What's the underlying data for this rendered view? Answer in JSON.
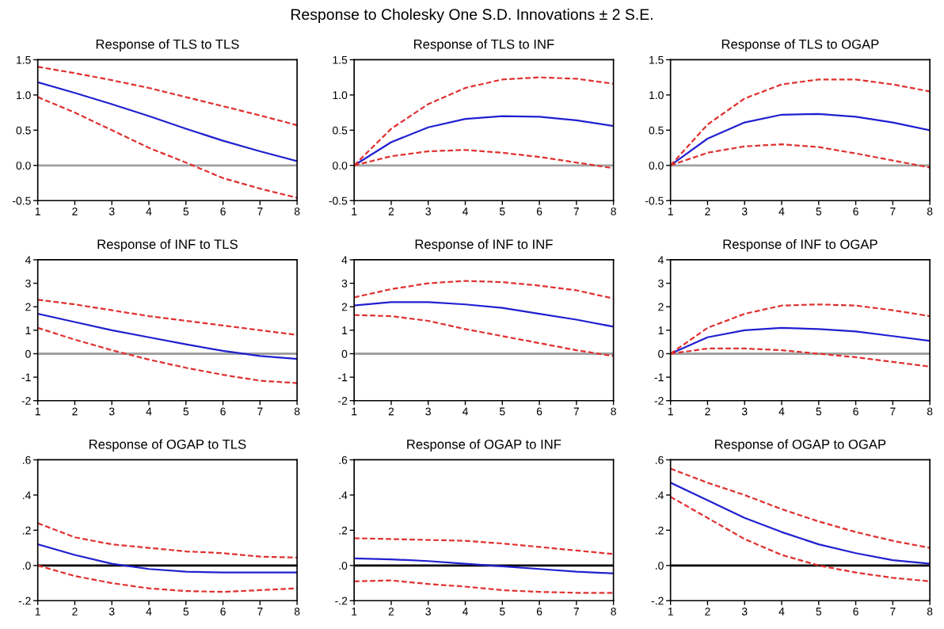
{
  "chart_data": [
    {
      "type": "line",
      "title": "Response of TLS to TLS",
      "annotations": [
        "Response to Cholesky One S.D. Innovations ± 2 S.E."
      ],
      "x": [
        1,
        2,
        3,
        4,
        5,
        6,
        7,
        8
      ],
      "xlim": [
        1,
        8
      ],
      "xticks": [
        1,
        2,
        3,
        4,
        5,
        6,
        7,
        8
      ],
      "ylim": [
        -0.5,
        1.5
      ],
      "yticks": [
        {
          "value": -0.5,
          "label": "-0.5"
        },
        {
          "value": 0,
          "label": "0.0"
        },
        {
          "value": 0.5,
          "label": "0.5"
        },
        {
          "value": 1,
          "label": "1.0"
        },
        {
          "value": 1.5,
          "label": "1.5"
        }
      ],
      "ref_lines": [
        {
          "axis": "y",
          "value": 0,
          "color": "#a0a0a0"
        }
      ],
      "series": [
        {
          "color": "#2020d0",
          "line_style": "solid",
          "values": [
            1.18,
            1.03,
            0.87,
            0.7,
            0.52,
            0.35,
            0.2,
            0.06
          ]
        },
        {
          "color": "#e03030",
          "line_style": "dashed",
          "values": [
            1.4,
            1.31,
            1.21,
            1.1,
            0.97,
            0.84,
            0.71,
            0.57
          ]
        },
        {
          "color": "#e03030",
          "line_style": "dashed",
          "values": [
            0.97,
            0.75,
            0.5,
            0.25,
            0.04,
            -0.18,
            -0.33,
            -0.46
          ]
        }
      ]
    },
    {
      "type": "line",
      "title": "Response of TLS to INF",
      "x": [
        1,
        2,
        3,
        4,
        5,
        6,
        7,
        8
      ],
      "xlim": [
        1,
        8
      ],
      "xticks": [
        1,
        2,
        3,
        4,
        5,
        6,
        7,
        8
      ],
      "ylim": [
        -0.5,
        1.5
      ],
      "yticks": [
        {
          "value": -0.5,
          "label": "-0.5"
        },
        {
          "value": 0,
          "label": "0.0"
        },
        {
          "value": 0.5,
          "label": "0.5"
        },
        {
          "value": 1,
          "label": "1.0"
        },
        {
          "value": 1.5,
          "label": "1.5"
        }
      ],
      "ref_lines": [
        {
          "axis": "y",
          "value": 0,
          "color": "#a0a0a0"
        }
      ],
      "series": [
        {
          "color": "#2020d0",
          "line_style": "solid",
          "values": [
            0,
            0.33,
            0.54,
            0.66,
            0.7,
            0.69,
            0.64,
            0.56
          ]
        },
        {
          "color": "#e03030",
          "line_style": "dashed",
          "values": [
            0,
            0.52,
            0.87,
            1.1,
            1.22,
            1.25,
            1.23,
            1.16
          ]
        },
        {
          "color": "#e03030",
          "line_style": "dashed",
          "values": [
            0,
            0.13,
            0.2,
            0.22,
            0.18,
            0.12,
            0.04,
            -0.04
          ]
        }
      ]
    },
    {
      "type": "line",
      "title": "Response of TLS to OGAP",
      "x": [
        1,
        2,
        3,
        4,
        5,
        6,
        7,
        8
      ],
      "xlim": [
        1,
        8
      ],
      "xticks": [
        1,
        2,
        3,
        4,
        5,
        6,
        7,
        8
      ],
      "ylim": [
        -0.5,
        1.5
      ],
      "yticks": [
        {
          "value": -0.5,
          "label": "-0.5"
        },
        {
          "value": 0,
          "label": "0.0"
        },
        {
          "value": 0.5,
          "label": "0.5"
        },
        {
          "value": 1,
          "label": "1.0"
        },
        {
          "value": 1.5,
          "label": "1.5"
        }
      ],
      "ref_lines": [
        {
          "axis": "y",
          "value": 0,
          "color": "#a0a0a0"
        }
      ],
      "series": [
        {
          "color": "#2020d0",
          "line_style": "solid",
          "values": [
            0,
            0.38,
            0.61,
            0.72,
            0.73,
            0.69,
            0.61,
            0.5
          ]
        },
        {
          "color": "#e03030",
          "line_style": "dashed",
          "values": [
            0,
            0.58,
            0.95,
            1.15,
            1.22,
            1.22,
            1.15,
            1.05
          ]
        },
        {
          "color": "#e03030",
          "line_style": "dashed",
          "values": [
            0,
            0.18,
            0.27,
            0.3,
            0.26,
            0.17,
            0.07,
            -0.03
          ]
        }
      ]
    },
    {
      "type": "line",
      "title": "Response of INF to TLS",
      "x": [
        1,
        2,
        3,
        4,
        5,
        6,
        7,
        8
      ],
      "xlim": [
        1,
        8
      ],
      "xticks": [
        1,
        2,
        3,
        4,
        5,
        6,
        7,
        8
      ],
      "ylim": [
        -2,
        4
      ],
      "yticks": [
        -2,
        -1,
        0,
        1,
        2,
        3,
        4
      ],
      "ref_lines": [
        {
          "axis": "y",
          "value": 0,
          "color": "#a0a0a0"
        }
      ],
      "series": [
        {
          "color": "#2020d0",
          "line_style": "solid",
          "values": [
            1.7,
            1.35,
            1.0,
            0.7,
            0.4,
            0.12,
            -0.1,
            -0.22
          ]
        },
        {
          "color": "#e03030",
          "line_style": "dashed",
          "values": [
            2.3,
            2.1,
            1.85,
            1.6,
            1.4,
            1.2,
            1.0,
            0.8
          ]
        },
        {
          "color": "#e03030",
          "line_style": "dashed",
          "values": [
            1.1,
            0.6,
            0.15,
            -0.25,
            -0.6,
            -0.9,
            -1.15,
            -1.25
          ]
        }
      ]
    },
    {
      "type": "line",
      "title": "Response of INF to INF",
      "x": [
        1,
        2,
        3,
        4,
        5,
        6,
        7,
        8
      ],
      "xlim": [
        1,
        8
      ],
      "xticks": [
        1,
        2,
        3,
        4,
        5,
        6,
        7,
        8
      ],
      "ylim": [
        -2,
        4
      ],
      "yticks": [
        -2,
        -1,
        0,
        1,
        2,
        3,
        4
      ],
      "ref_lines": [
        {
          "axis": "y",
          "value": 0,
          "color": "#a0a0a0"
        }
      ],
      "series": [
        {
          "color": "#2020d0",
          "line_style": "solid",
          "values": [
            2.05,
            2.2,
            2.2,
            2.1,
            1.95,
            1.7,
            1.45,
            1.15
          ]
        },
        {
          "color": "#e03030",
          "line_style": "dashed",
          "values": [
            2.4,
            2.75,
            3.0,
            3.1,
            3.05,
            2.9,
            2.7,
            2.35
          ]
        },
        {
          "color": "#e03030",
          "line_style": "dashed",
          "values": [
            1.65,
            1.6,
            1.4,
            1.05,
            0.75,
            0.45,
            0.15,
            -0.1
          ]
        }
      ]
    },
    {
      "type": "line",
      "title": "Response of INF to OGAP",
      "x": [
        1,
        2,
        3,
        4,
        5,
        6,
        7,
        8
      ],
      "xlim": [
        1,
        8
      ],
      "xticks": [
        1,
        2,
        3,
        4,
        5,
        6,
        7,
        8
      ],
      "ylim": [
        -2,
        4
      ],
      "yticks": [
        -2,
        -1,
        0,
        1,
        2,
        3,
        4
      ],
      "ref_lines": [
        {
          "axis": "y",
          "value": 0,
          "color": "#a0a0a0"
        }
      ],
      "series": [
        {
          "color": "#2020d0",
          "line_style": "solid",
          "values": [
            0,
            0.7,
            1.0,
            1.1,
            1.05,
            0.95,
            0.75,
            0.55
          ]
        },
        {
          "color": "#e03030",
          "line_style": "dashed",
          "values": [
            0,
            1.1,
            1.7,
            2.05,
            2.1,
            2.05,
            1.85,
            1.6
          ]
        },
        {
          "color": "#e03030",
          "line_style": "dashed",
          "values": [
            0,
            0.22,
            0.22,
            0.15,
            0.0,
            -0.15,
            -0.35,
            -0.55
          ]
        }
      ]
    },
    {
      "type": "line",
      "title": "Response of OGAP to TLS",
      "x": [
        1,
        2,
        3,
        4,
        5,
        6,
        7,
        8
      ],
      "xlim": [
        1,
        8
      ],
      "xticks": [
        1,
        2,
        3,
        4,
        5,
        6,
        7,
        8
      ],
      "ylim": [
        -0.2,
        0.6
      ],
      "yticks": [
        {
          "value": -0.2,
          "label": "-.2"
        },
        {
          "value": 0,
          "label": ".0"
        },
        {
          "value": 0.2,
          "label": ".2"
        },
        {
          "value": 0.4,
          "label": ".4"
        },
        {
          "value": 0.6,
          "label": ".6"
        }
      ],
      "ref_lines": [
        {
          "axis": "y",
          "value": 0,
          "color": "#000000"
        }
      ],
      "series": [
        {
          "color": "#2020d0",
          "line_style": "solid",
          "values": [
            0.12,
            0.06,
            0.01,
            -0.02,
            -0.035,
            -0.04,
            -0.04,
            -0.04
          ]
        },
        {
          "color": "#e03030",
          "line_style": "dashed",
          "values": [
            0.24,
            0.16,
            0.12,
            0.1,
            0.08,
            0.07,
            0.05,
            0.045
          ]
        },
        {
          "color": "#e03030",
          "line_style": "dashed",
          "values": [
            0.0,
            -0.06,
            -0.1,
            -0.13,
            -0.145,
            -0.15,
            -0.14,
            -0.13
          ]
        }
      ]
    },
    {
      "type": "line",
      "title": "Response of OGAP to INF",
      "x": [
        1,
        2,
        3,
        4,
        5,
        6,
        7,
        8
      ],
      "xlim": [
        1,
        8
      ],
      "xticks": [
        1,
        2,
        3,
        4,
        5,
        6,
        7,
        8
      ],
      "ylim": [
        -0.2,
        0.6
      ],
      "yticks": [
        {
          "value": -0.2,
          "label": "-.2"
        },
        {
          "value": 0,
          "label": ".0"
        },
        {
          "value": 0.2,
          "label": ".2"
        },
        {
          "value": 0.4,
          "label": ".4"
        },
        {
          "value": 0.6,
          "label": ".6"
        }
      ],
      "ref_lines": [
        {
          "axis": "y",
          "value": 0,
          "color": "#000000"
        }
      ],
      "series": [
        {
          "color": "#2020d0",
          "line_style": "solid",
          "values": [
            0.04,
            0.035,
            0.025,
            0.01,
            -0.005,
            -0.02,
            -0.035,
            -0.045
          ]
        },
        {
          "color": "#e03030",
          "line_style": "dashed",
          "values": [
            0.155,
            0.15,
            0.145,
            0.14,
            0.125,
            0.105,
            0.085,
            0.065
          ]
        },
        {
          "color": "#e03030",
          "line_style": "dashed",
          "values": [
            -0.09,
            -0.085,
            -0.105,
            -0.12,
            -0.14,
            -0.15,
            -0.155,
            -0.155
          ]
        }
      ]
    },
    {
      "type": "line",
      "title": "Response of OGAP to OGAP",
      "x": [
        1,
        2,
        3,
        4,
        5,
        6,
        7,
        8
      ],
      "xlim": [
        1,
        8
      ],
      "xticks": [
        1,
        2,
        3,
        4,
        5,
        6,
        7,
        8
      ],
      "ylim": [
        -0.2,
        0.6
      ],
      "yticks": [
        {
          "value": -0.2,
          "label": "-.2"
        },
        {
          "value": 0,
          "label": ".0"
        },
        {
          "value": 0.2,
          "label": ".2"
        },
        {
          "value": 0.4,
          "label": ".4"
        },
        {
          "value": 0.6,
          "label": ".6"
        }
      ],
      "ref_lines": [
        {
          "axis": "y",
          "value": 0,
          "color": "#000000"
        }
      ],
      "series": [
        {
          "color": "#2020d0",
          "line_style": "solid",
          "values": [
            0.47,
            0.37,
            0.27,
            0.19,
            0.12,
            0.07,
            0.03,
            0.01
          ]
        },
        {
          "color": "#e03030",
          "line_style": "dashed",
          "values": [
            0.55,
            0.47,
            0.4,
            0.32,
            0.25,
            0.19,
            0.14,
            0.1
          ]
        },
        {
          "color": "#e03030",
          "line_style": "dashed",
          "values": [
            0.39,
            0.27,
            0.15,
            0.06,
            0.0,
            -0.04,
            -0.07,
            -0.09
          ]
        }
      ]
    }
  ]
}
